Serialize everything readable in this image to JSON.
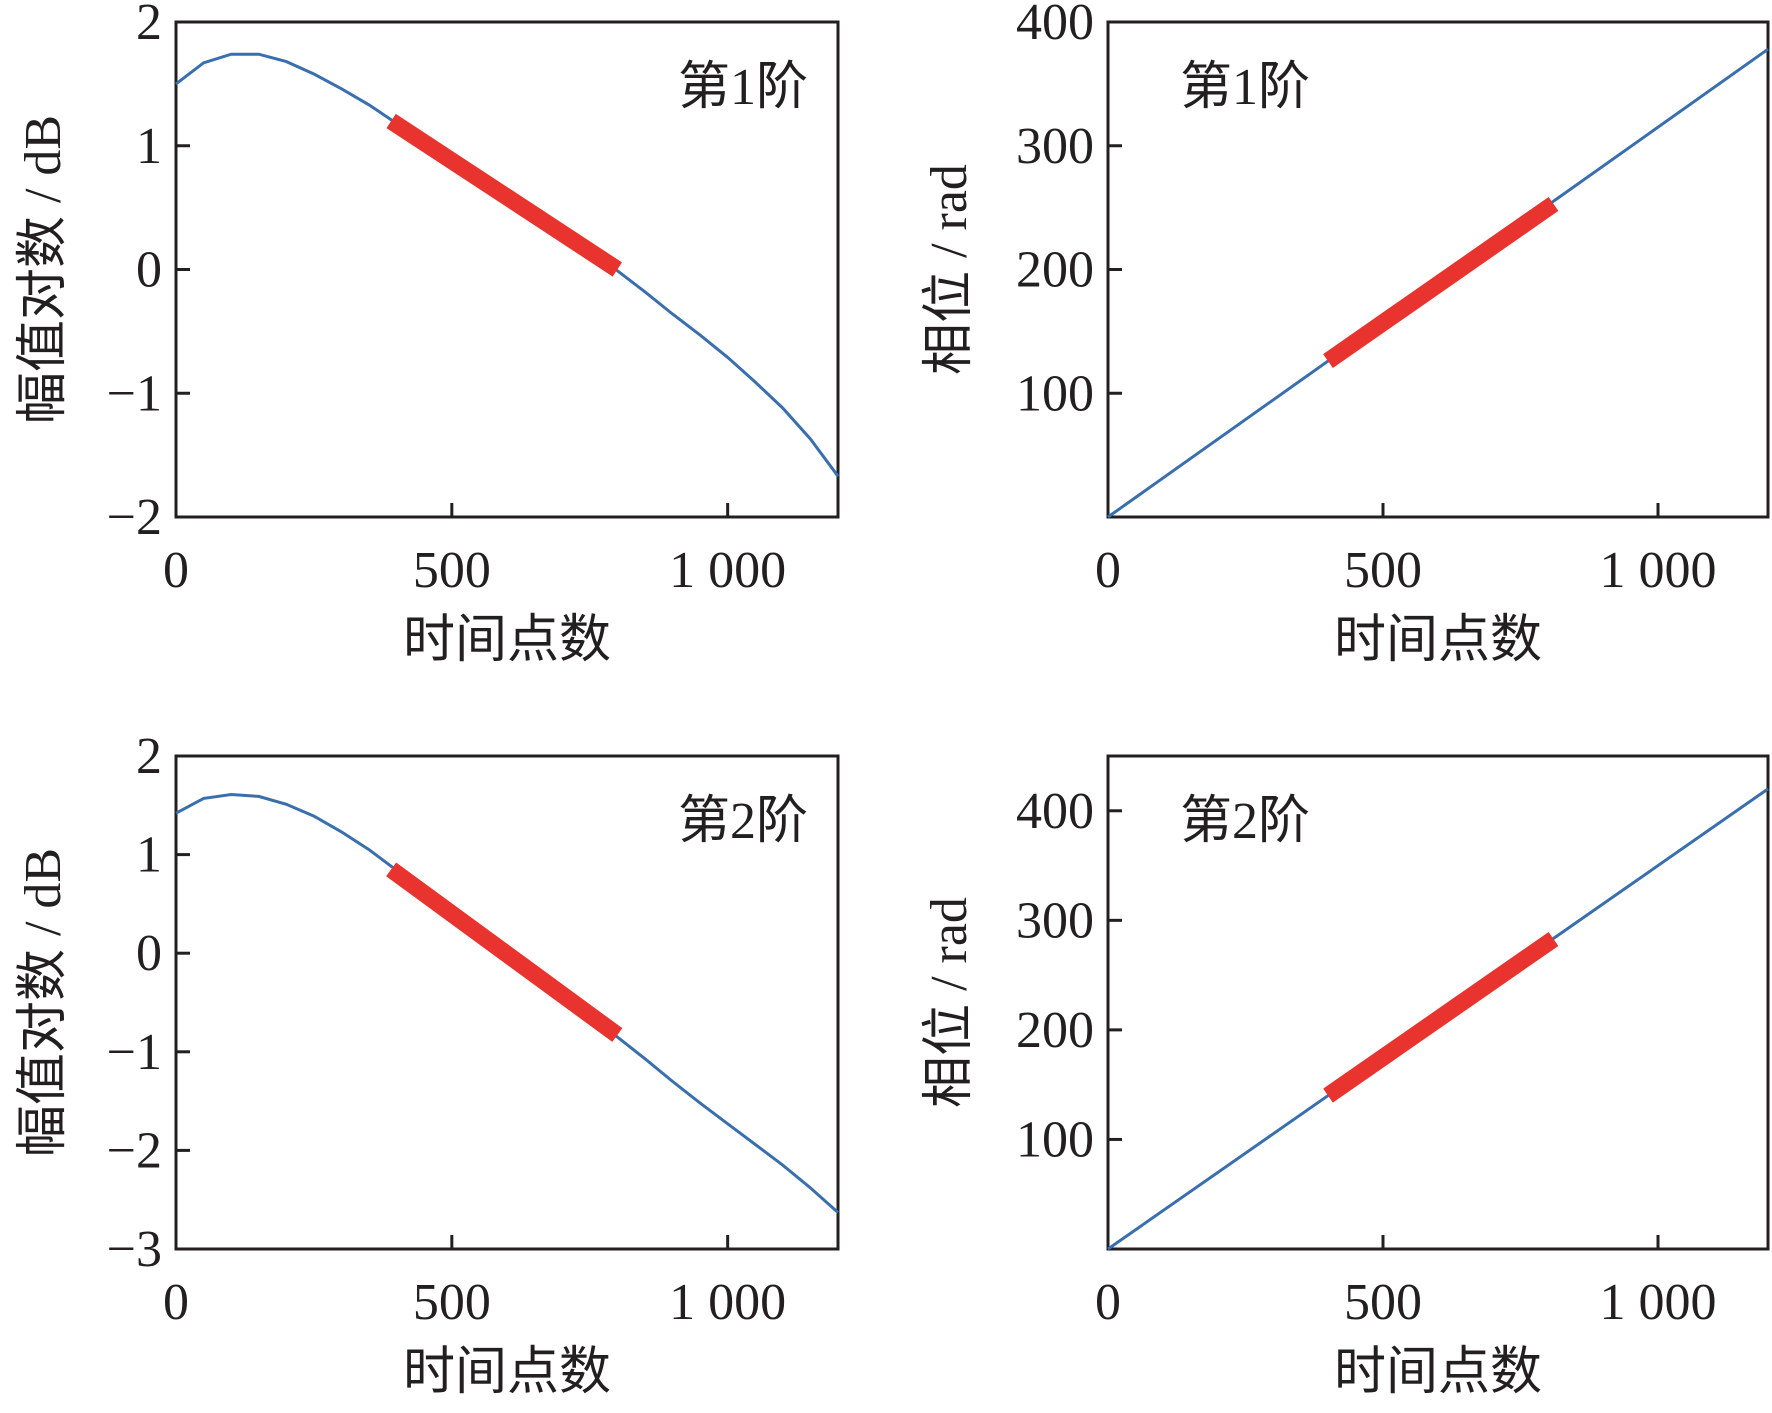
{
  "colors": {
    "curve": "#3a6fae",
    "highlight": "#e8332e",
    "axis": "#231f20"
  },
  "chart_data": [
    {
      "type": "line",
      "xlabel": "时间点数",
      "ylabel": "幅值对数 / dB",
      "annotation": "第1阶",
      "xlim": [
        0,
        1200
      ],
      "ylim": [
        -2,
        2
      ],
      "xticks": [
        0,
        500,
        1000
      ],
      "xtick_labels": [
        "0",
        "500",
        "1 000"
      ],
      "yticks": [
        -2,
        -1,
        0,
        1,
        2
      ],
      "ytick_labels": [
        "−2",
        "−1",
        "0",
        "1",
        "2"
      ],
      "series": [
        {
          "x": [
            0,
            50,
            100,
            150,
            200,
            250,
            300,
            350,
            400,
            450,
            500,
            550,
            600,
            650,
            700,
            750,
            800,
            850,
            900,
            950,
            1000,
            1050,
            1100,
            1150,
            1200
          ],
          "y": [
            1.5,
            1.67,
            1.74,
            1.74,
            1.68,
            1.58,
            1.46,
            1.33,
            1.18,
            1.03,
            0.88,
            0.73,
            0.58,
            0.44,
            0.29,
            0.15,
            -0.01,
            -0.18,
            -0.36,
            -0.53,
            -0.71,
            -0.91,
            -1.12,
            -1.37,
            -1.67
          ]
        }
      ],
      "highlight": {
        "x_range": [
          390,
          800
        ],
        "y_range": [
          1.2,
          0.0
        ]
      }
    },
    {
      "type": "line",
      "xlabel": "时间点数",
      "ylabel": "相位 / rad",
      "annotation": "第1阶",
      "xlim": [
        0,
        1200
      ],
      "ylim": [
        0,
        400
      ],
      "xticks": [
        0,
        500,
        1000
      ],
      "xtick_labels": [
        "0",
        "500",
        "1 000"
      ],
      "yticks": [
        100,
        200,
        300,
        400
      ],
      "ytick_labels": [
        "100",
        "200",
        "300",
        "400"
      ],
      "series": [
        {
          "x": [
            0,
            1200
          ],
          "y": [
            0,
            378
          ]
        }
      ],
      "highlight": {
        "x_range": [
          400,
          810
        ],
        "y_range": [
          126,
          253
        ]
      }
    },
    {
      "type": "line",
      "xlabel": "时间点数",
      "ylabel": "幅值对数 / dB",
      "annotation": "第2阶",
      "xlim": [
        0,
        1200
      ],
      "ylim": [
        -3,
        2
      ],
      "xticks": [
        0,
        500,
        1000
      ],
      "xtick_labels": [
        "0",
        "500",
        "1 000"
      ],
      "yticks": [
        -3,
        -2,
        -1,
        0,
        1,
        2
      ],
      "ytick_labels": [
        "−3",
        "−2",
        "−1",
        "0",
        "1",
        "2"
      ],
      "series": [
        {
          "x": [
            0,
            50,
            100,
            150,
            200,
            250,
            300,
            350,
            400,
            450,
            500,
            550,
            600,
            650,
            700,
            750,
            800,
            850,
            900,
            950,
            1000,
            1050,
            1100,
            1150,
            1200
          ],
          "y": [
            1.42,
            1.57,
            1.61,
            1.59,
            1.51,
            1.39,
            1.23,
            1.05,
            0.84,
            0.63,
            0.42,
            0.2,
            -0.01,
            -0.23,
            -0.45,
            -0.66,
            -0.85,
            -1.07,
            -1.3,
            -1.52,
            -1.73,
            -1.94,
            -2.15,
            -2.38,
            -2.63
          ]
        }
      ],
      "highlight": {
        "x_range": [
          390,
          800
        ],
        "y_range": [
          0.85,
          -0.83
        ]
      }
    },
    {
      "type": "line",
      "xlabel": "时间点数",
      "ylabel": "相位 / rad",
      "annotation": "第2阶",
      "xlim": [
        0,
        1200
      ],
      "ylim": [
        0,
        450
      ],
      "xticks": [
        0,
        500,
        1000
      ],
      "xtick_labels": [
        "0",
        "500",
        "1 000"
      ],
      "yticks": [
        100,
        200,
        300,
        400
      ],
      "ytick_labels": [
        "100",
        "200",
        "300",
        "400"
      ],
      "series": [
        {
          "x": [
            0,
            1200
          ],
          "y": [
            0,
            420
          ]
        }
      ],
      "highlight": {
        "x_range": [
          400,
          810
        ],
        "y_range": [
          140,
          283
        ]
      }
    }
  ]
}
